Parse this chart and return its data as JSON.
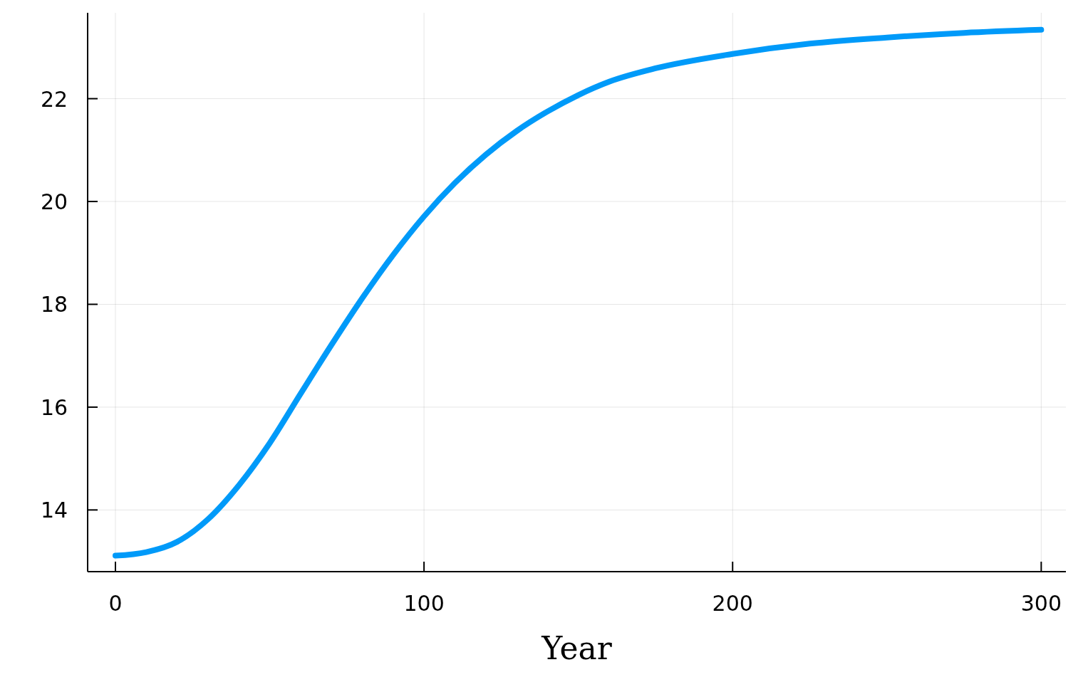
{
  "chart_data": {
    "type": "line",
    "xlabel": "Year",
    "x": [
      0,
      10,
      20,
      30,
      40,
      50,
      60,
      70,
      80,
      90,
      100,
      110,
      120,
      130,
      140,
      150,
      160,
      175,
      200,
      225,
      250,
      275,
      300
    ],
    "series": [
      {
        "color": "#009af9",
        "values": [
          13.11,
          13.18,
          13.38,
          13.82,
          14.48,
          15.3,
          16.26,
          17.21,
          18.12,
          18.96,
          19.71,
          20.36,
          20.91,
          21.37,
          21.75,
          22.07,
          22.33,
          22.59,
          22.87,
          23.07,
          23.19,
          23.28,
          23.34
        ]
      }
    ],
    "xlim": [
      -9,
      308
    ],
    "ylim": [
      12.8,
      23.67
    ],
    "xticks": [
      0,
      100,
      200,
      300
    ],
    "yticks": [
      14,
      16,
      18,
      20,
      22
    ],
    "grid": true,
    "marker": "none",
    "line_style": "solid"
  }
}
